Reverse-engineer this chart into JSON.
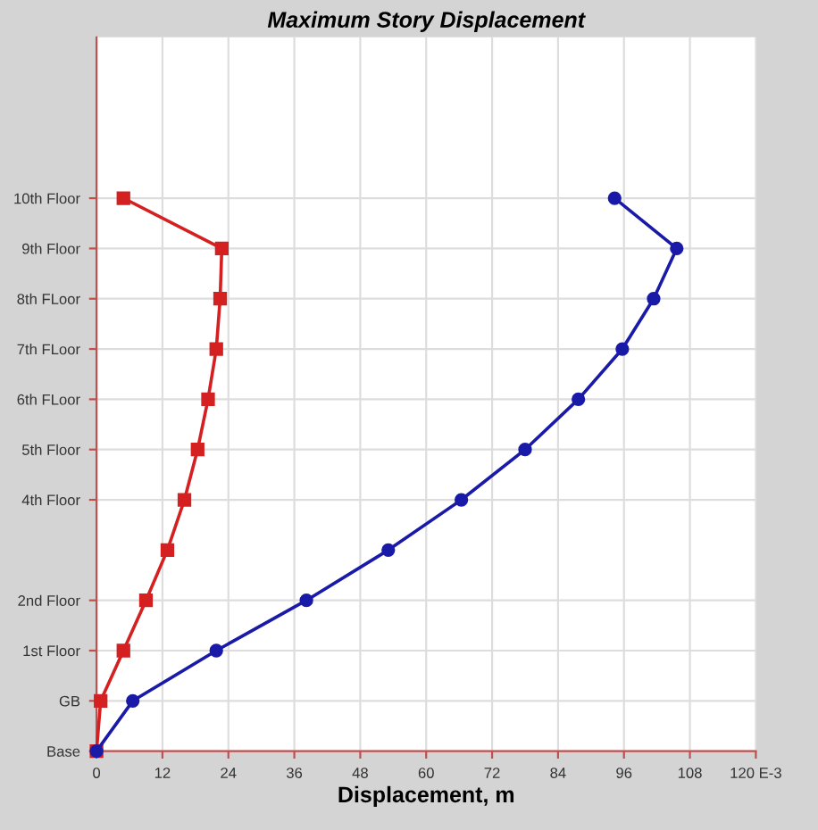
{
  "chart_data": {
    "type": "line",
    "orientation": "horizontal",
    "title": "Maximum Story Displacement",
    "xlabel": "Displacement, m",
    "xlim": [
      0,
      120
    ],
    "xticks": [
      0,
      12,
      24,
      36,
      48,
      60,
      72,
      84,
      96,
      108,
      {
        "value": 120,
        "label": "120 E-3"
      }
    ],
    "categories": [
      "10th Floor",
      "9th Floor",
      "8th FLoor",
      "7th FLoor",
      "6th FLoor",
      "5th Floor",
      "4th Floor",
      null,
      "2nd Floor",
      "1st Floor",
      "GB",
      "Base"
    ],
    "grid": true,
    "series": [
      {
        "color": "#d42020",
        "marker": "square",
        "values": [
          4.9,
          22.8,
          22.5,
          21.8,
          20.3,
          18.4,
          16.0,
          12.9,
          9.0,
          4.9,
          0.75,
          0
        ]
      },
      {
        "color": "#1a1aa8",
        "marker": "circle",
        "values": [
          94.3,
          105.6,
          101.4,
          95.7,
          87.7,
          78.0,
          66.4,
          53.1,
          38.2,
          21.8,
          6.6,
          0
        ]
      }
    ]
  }
}
